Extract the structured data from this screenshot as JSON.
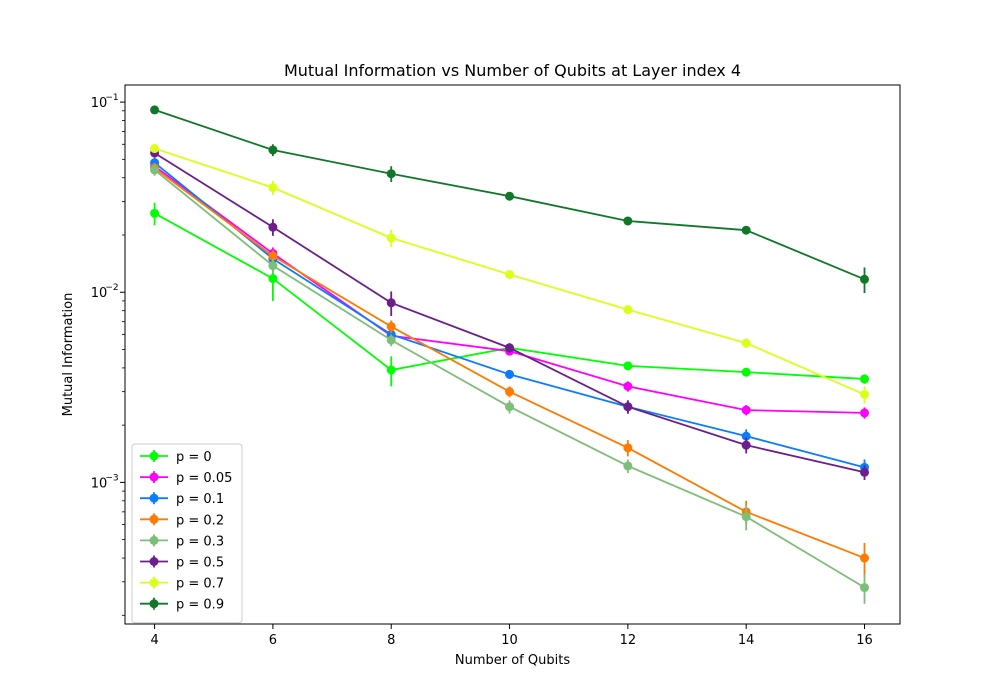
{
  "chart_data": {
    "type": "line",
    "title": "Mutual Information vs Number of Qubits at Layer index 4",
    "xlabel": "Number of Qubits",
    "ylabel": "Mutual Information",
    "x": [
      4,
      6,
      8,
      10,
      12,
      14,
      16
    ],
    "x_ticks": [
      "4",
      "6",
      "8",
      "10",
      "12",
      "14",
      "16"
    ],
    "xlim": [
      3.5,
      16.6
    ],
    "ylim": [
      0.00018,
      0.123
    ],
    "yscale": "log",
    "y_major_ticks": [
      {
        "value": 0.001,
        "base": "10",
        "exp": "−3"
      },
      {
        "value": 0.01,
        "base": "10",
        "exp": "−2"
      },
      {
        "value": 0.1,
        "base": "10",
        "exp": "−1"
      }
    ],
    "grid": false,
    "legend_position": "lower-left",
    "series": [
      {
        "name": "p = 0",
        "color": "#00ff00",
        "values": [
          0.026,
          0.0118,
          0.0039,
          0.0051,
          0.0041,
          0.0038,
          0.0035
        ],
        "err": [
          0.0035,
          0.0028,
          0.0007,
          0.0002,
          0.0002,
          0.0002,
          0.0002
        ]
      },
      {
        "name": "p = 0.05",
        "color": "#ff00ff",
        "values": [
          0.046,
          0.016,
          0.0059,
          0.0049,
          0.0032,
          0.0024,
          0.00232
        ],
        "err": [
          0.003,
          0.0012,
          0.0005,
          0.0002,
          0.0002,
          0.00015,
          0.00016
        ]
      },
      {
        "name": "p = 0.1",
        "color": "#0a7cff",
        "values": [
          0.048,
          0.015,
          0.006,
          0.0037,
          0.0025,
          0.00175,
          0.0012
        ],
        "err": [
          0.003,
          0.0012,
          0.0004,
          0.0002,
          0.0002,
          0.00015,
          0.00012
        ]
      },
      {
        "name": "p = 0.2",
        "color": "#ff7a00",
        "values": [
          0.045,
          0.0155,
          0.0066,
          0.003,
          0.00152,
          0.0007,
          0.0004
        ],
        "err": [
          0.003,
          0.0012,
          0.0005,
          0.0002,
          0.00015,
          0.0001,
          8e-05
        ]
      },
      {
        "name": "p = 0.3",
        "color": "#7dbf79",
        "values": [
          0.044,
          0.0138,
          0.0056,
          0.0025,
          0.00122,
          0.00066,
          0.00028
        ],
        "err": [
          0.003,
          0.0012,
          0.0004,
          0.0002,
          0.0001,
          0.0001,
          5e-05
        ]
      },
      {
        "name": "p = 0.5",
        "color": "#6c1f8c",
        "values": [
          0.054,
          0.022,
          0.0088,
          0.0051,
          0.0025,
          0.00157,
          0.00113
        ],
        "err": [
          0.003,
          0.0022,
          0.0013,
          0.0003,
          0.0002,
          0.00015,
          0.0001
        ]
      },
      {
        "name": "p = 0.7",
        "color": "#dcff1a",
        "values": [
          0.057,
          0.0355,
          0.0193,
          0.0124,
          0.0081,
          0.0054,
          0.0029
        ],
        "err": [
          0.003,
          0.003,
          0.002,
          0.0005,
          0.0003,
          0.0003,
          0.0003
        ]
      },
      {
        "name": "p = 0.9",
        "color": "#11782a",
        "values": [
          0.091,
          0.056,
          0.042,
          0.032,
          0.0237,
          0.0212,
          0.0117
        ],
        "err": [
          0.003,
          0.004,
          0.004,
          0.0015,
          0.0008,
          0.0008,
          0.0018
        ]
      }
    ]
  }
}
